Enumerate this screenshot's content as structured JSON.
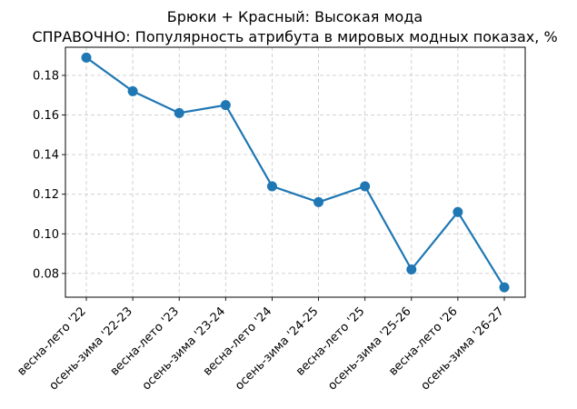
{
  "chart_data": {
    "type": "line",
    "title": "Брюки + Красный: Высокая мода",
    "subtitle": "СПРАВОЧНО: Популярность атрибута в мировых модных показах, %",
    "xlabel": "",
    "ylabel": "",
    "categories": [
      "весна-лето '22",
      "осень-зима '22-23",
      "весна-лето '23",
      "осень-зима '23-24",
      "весна-лето '24",
      "осень-зима '24-25",
      "весна-лето '25",
      "осень-зима '25-26",
      "весна-лето '26",
      "осень-зима '26-27"
    ],
    "series": [
      {
        "values": [
          0.189,
          0.172,
          0.161,
          0.165,
          0.124,
          0.116,
          0.124,
          0.082,
          0.111,
          0.073
        ]
      }
    ],
    "ylim": [
      0.068,
      0.1942
    ],
    "yticks": [
      0.08,
      0.1,
      0.12,
      0.14,
      0.16,
      0.18
    ],
    "ytick_labels": [
      "0.08",
      "0.10",
      "0.12",
      "0.14",
      "0.16",
      "0.18"
    ],
    "grid": true,
    "line_color": "#1f77b4",
    "grid_color": "#cccccc"
  }
}
